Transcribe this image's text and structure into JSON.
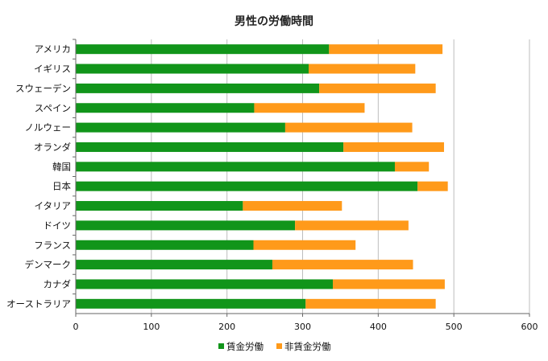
{
  "chart_data": {
    "type": "bar",
    "orientation": "horizontal",
    "stacked": true,
    "title": "男性の労働時間",
    "xlabel": "",
    "ylabel": "",
    "xlim": [
      0,
      600
    ],
    "ticks": [
      0,
      100,
      200,
      300,
      400,
      500,
      600
    ],
    "grid": true,
    "legend_position": "bottom",
    "categories": [
      "アメリカ",
      "イギリス",
      "スウェーデン",
      "スペイン",
      "ノルウェー",
      "オランダ",
      "韓国",
      "日本",
      "イタリア",
      "ドイツ",
      "フランス",
      "デンマーク",
      "カナダ",
      "オーストラリア"
    ],
    "series": [
      {
        "name": "賃金労働",
        "color": "#11951a",
        "values": [
          335,
          308,
          322,
          236,
          277,
          354,
          422,
          452,
          221,
          290,
          235,
          260,
          340,
          304
        ]
      },
      {
        "name": "非賃金労働",
        "color": "#ff9a1a",
        "values": [
          150,
          141,
          154,
          146,
          168,
          133,
          45,
          40,
          131,
          150,
          135,
          186,
          148,
          172
        ]
      }
    ]
  }
}
